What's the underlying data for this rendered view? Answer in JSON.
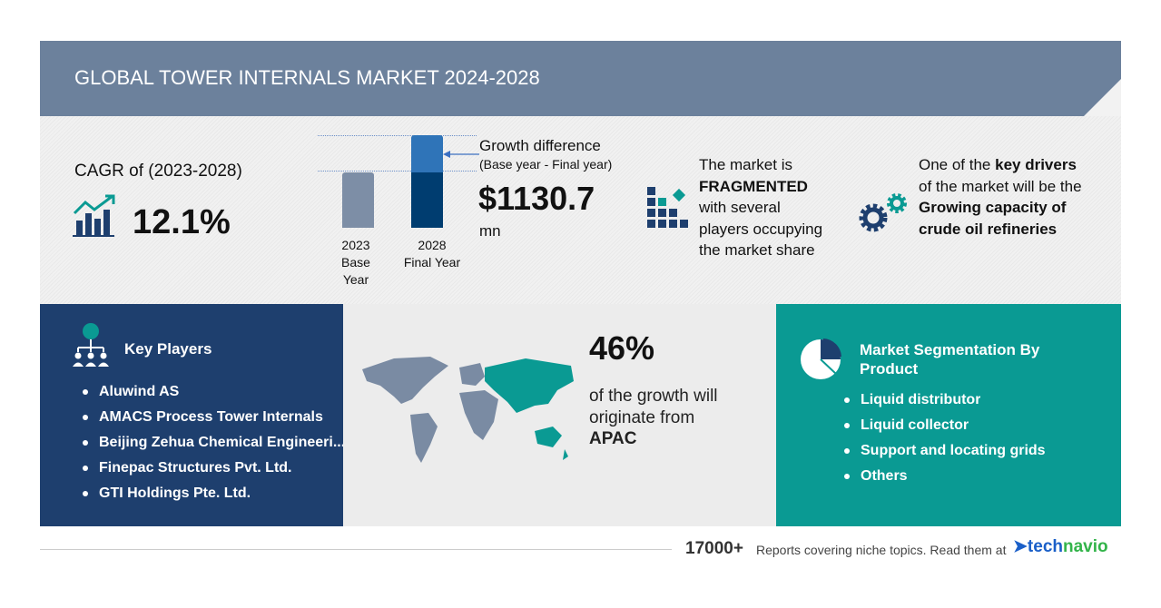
{
  "header": {
    "title": "GLOBAL TOWER INTERNALS MARKET 2024-2028"
  },
  "cagr": {
    "label": "CAGR of (2023-2028)",
    "value": "12.1%"
  },
  "chart_data": {
    "type": "bar",
    "categories": [
      "2023",
      "2028"
    ],
    "sublabels": [
      "Base Year",
      "Final Year"
    ],
    "values": [
      60,
      100
    ],
    "note": "relative heights; growth segment highlighted"
  },
  "growth": {
    "title": "Growth difference",
    "subtitle": "(Base year - Final year)",
    "value": "$1130.7",
    "unit": "mn"
  },
  "fragmented": {
    "l1": "The market is",
    "l2": "FRAGMENTED",
    "l3": "with several",
    "l4": "players occupying",
    "l5": "the market share"
  },
  "drivers": {
    "l1a": "One of the ",
    "l1b": "key drivers",
    "l2": "of the market will be the",
    "l3": "Growing capacity of",
    "l4": "crude oil refineries"
  },
  "key_players": {
    "title": "Key Players",
    "items": [
      "Aluwind AS",
      "AMACS Process Tower Internals",
      "Beijing Zehua Chemical Engineeri...",
      "Finepac Structures Pvt. Ltd.",
      "GTI Holdings Pte. Ltd."
    ]
  },
  "region": {
    "percent": "46%",
    "l1": "of the growth will",
    "l2": "originate from",
    "region": "APAC"
  },
  "segmentation": {
    "title1": "Market Segmentation By",
    "title2": "Product",
    "items": [
      "Liquid distributor",
      "Liquid collector",
      "Support and locating grids",
      "Others"
    ]
  },
  "footer": {
    "count": "17000+",
    "text": "Reports covering niche topics. Read them at",
    "brand1": "tech",
    "brand2": "navio"
  },
  "colors": {
    "header": "#6c819c",
    "navy": "#1e3f6e",
    "teal": "#0a9a93"
  }
}
